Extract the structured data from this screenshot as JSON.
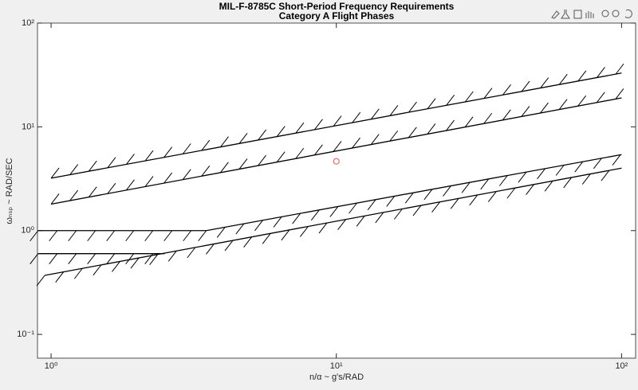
{
  "chart_data": {
    "type": "line",
    "title": [
      "MIL-F-8785C Short-Period Frequency Requirements",
      "Category A Flight Phases"
    ],
    "xlabel": "n/α ~ g's/RAD",
    "ylabel": "ωₙₛₚ ~ RAD/SEC",
    "xscale": "log",
    "yscale": "log",
    "xlim": [
      0.896,
      112
    ],
    "ylim": [
      0.059,
      100
    ],
    "xticks": [
      {
        "value": 1,
        "label": "10⁰"
      },
      {
        "value": 10,
        "label": "10¹"
      },
      {
        "value": 100,
        "label": "10²"
      }
    ],
    "yticks": [
      {
        "value": 0.1,
        "label": "10⁻¹"
      },
      {
        "value": 1,
        "label": "10⁰"
      },
      {
        "value": 10,
        "label": "10¹"
      },
      {
        "value": 100,
        "label": "10²"
      }
    ],
    "series": [
      {
        "type": "line",
        "color": "#000000",
        "x": [
          1,
          100
        ],
        "y": [
          3.2,
          33
        ]
      },
      {
        "type": "line",
        "color": "#000000",
        "x": [
          1,
          100
        ],
        "y": [
          1.8,
          19
        ]
      },
      {
        "type": "line",
        "color": "#000000",
        "x": [
          0.9,
          3.5,
          100
        ],
        "y": [
          1.0,
          1.0,
          5.4
        ]
      },
      {
        "type": "line",
        "color": "#000000",
        "x": [
          0.9,
          2.5
        ],
        "y": [
          0.6,
          0.6
        ]
      },
      {
        "type": "line",
        "color": "#000000",
        "x": [
          0.95,
          100
        ],
        "y": [
          0.37,
          4.0
        ]
      },
      {
        "type": "scatter",
        "color": "#e8514f",
        "x": [
          10
        ],
        "y": [
          4.65
        ]
      }
    ]
  }
}
